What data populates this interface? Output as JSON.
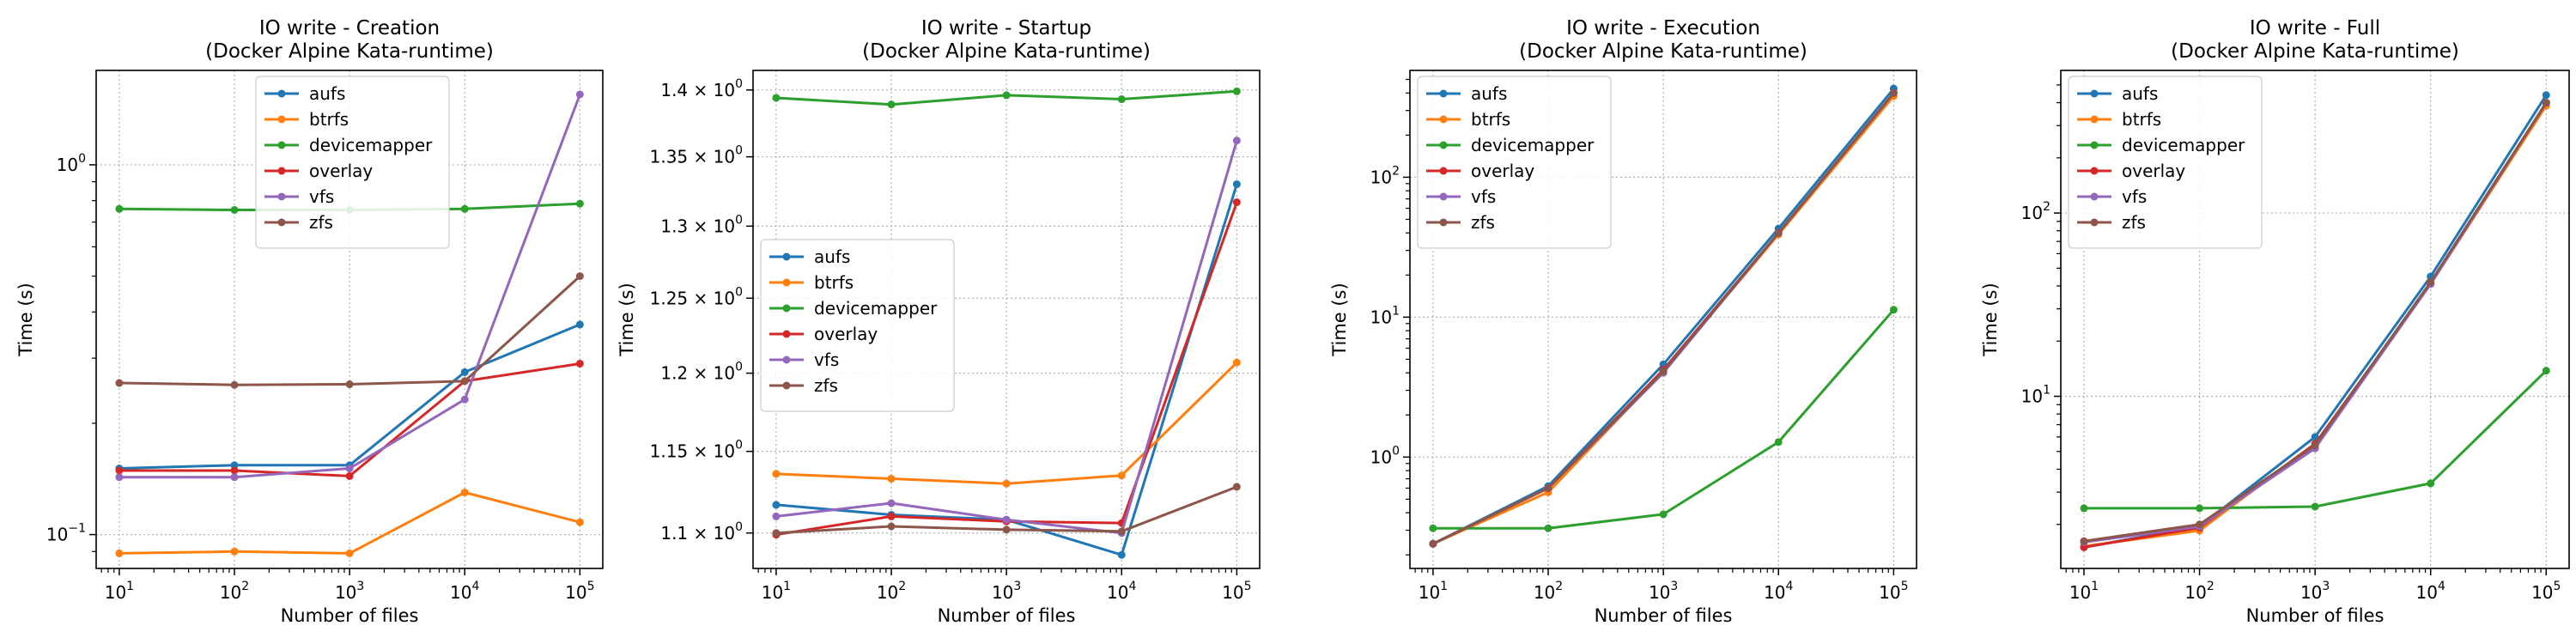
{
  "figure": {
    "xlabel": "Number of files",
    "ylabel": "Time (s)"
  },
  "colors": {
    "aufs": "#1f77b4",
    "btrfs": "#ff7f0e",
    "devicemapper": "#2ca02c",
    "overlay": "#d62728",
    "vfs": "#9467bd",
    "zfs": "#8c564b"
  },
  "chart_data": [
    {
      "type": "line",
      "title": "IO write - Creation",
      "subtitle": "(Docker Alpine Kata-runtime)",
      "xlabel": "Number of files",
      "ylabel": "Time (s)",
      "xscale": "log",
      "yscale": "log",
      "x": [
        10,
        100,
        1000,
        10000,
        100000
      ],
      "xticks": [
        {
          "v": 10,
          "m": "10",
          "e": "1"
        },
        {
          "v": 100,
          "m": "10",
          "e": "2"
        },
        {
          "v": 1000,
          "m": "10",
          "e": "3"
        },
        {
          "v": 10000,
          "m": "10",
          "e": "4"
        },
        {
          "v": 100000,
          "m": "10",
          "e": "5"
        }
      ],
      "xlim": [
        6.3,
        158000
      ],
      "ylim": [
        0.081,
        1.8
      ],
      "yticks": [
        {
          "v": 0.1,
          "m": "10",
          "e": "−1"
        },
        {
          "v": 1.0,
          "m": "10",
          "e": "0"
        }
      ],
      "grid": true,
      "legend": "top-center",
      "series": [
        {
          "name": "aufs",
          "values": [
            0.151,
            0.154,
            0.154,
            0.275,
            0.37
          ]
        },
        {
          "name": "btrfs",
          "values": [
            0.089,
            0.09,
            0.089,
            0.13,
            0.108
          ]
        },
        {
          "name": "devicemapper",
          "values": [
            0.76,
            0.755,
            0.755,
            0.76,
            0.785
          ]
        },
        {
          "name": "overlay",
          "values": [
            0.149,
            0.149,
            0.144,
            0.26,
            0.29
          ]
        },
        {
          "name": "vfs",
          "values": [
            0.143,
            0.143,
            0.151,
            0.232,
            1.55
          ]
        },
        {
          "name": "zfs",
          "values": [
            0.257,
            0.254,
            0.255,
            0.26,
            0.5
          ]
        }
      ]
    },
    {
      "type": "line",
      "title": "IO write - Startup",
      "subtitle": "(Docker Alpine Kata-runtime)",
      "xlabel": "Number of files",
      "ylabel": "Time (s)",
      "xscale": "log",
      "yscale": "log",
      "x": [
        10,
        100,
        1000,
        10000,
        100000
      ],
      "xticks": [
        {
          "v": 10,
          "m": "10",
          "e": "1"
        },
        {
          "v": 100,
          "m": "10",
          "e": "2"
        },
        {
          "v": 1000,
          "m": "10",
          "e": "3"
        },
        {
          "v": 10000,
          "m": "10",
          "e": "4"
        },
        {
          "v": 100000,
          "m": "10",
          "e": "5"
        }
      ],
      "xlim": [
        6.3,
        158000
      ],
      "ylim": [
        1.079,
        1.415
      ],
      "yticks": [
        {
          "v": 1.1,
          "m": "1.1 × 10",
          "e": "0"
        },
        {
          "v": 1.15,
          "m": "1.15 × 10",
          "e": "0"
        },
        {
          "v": 1.2,
          "m": "1.2 × 10",
          "e": "0"
        },
        {
          "v": 1.25,
          "m": "1.25 × 10",
          "e": "0"
        },
        {
          "v": 1.3,
          "m": "1.3 × 10",
          "e": "0"
        },
        {
          "v": 1.35,
          "m": "1.35 × 10",
          "e": "0"
        },
        {
          "v": 1.4,
          "m": "1.4 × 10",
          "e": "0"
        }
      ],
      "grid": true,
      "legend": "center-left",
      "series": [
        {
          "name": "aufs",
          "values": [
            1.117,
            1.111,
            1.108,
            1.087,
            1.33
          ]
        },
        {
          "name": "btrfs",
          "values": [
            1.136,
            1.133,
            1.13,
            1.135,
            1.207
          ]
        },
        {
          "name": "devicemapper",
          "values": [
            1.394,
            1.389,
            1.396,
            1.393,
            1.399
          ]
        },
        {
          "name": "overlay",
          "values": [
            1.099,
            1.11,
            1.107,
            1.106,
            1.317
          ]
        },
        {
          "name": "vfs",
          "values": [
            1.11,
            1.118,
            1.108,
            1.1,
            1.362
          ]
        },
        {
          "name": "zfs",
          "values": [
            1.1,
            1.104,
            1.102,
            1.101,
            1.128
          ]
        }
      ]
    },
    {
      "type": "line",
      "title": "IO write - Execution",
      "subtitle": "(Docker Alpine Kata-runtime)",
      "xlabel": "Number of files",
      "ylabel": "Time (s)",
      "xscale": "log",
      "yscale": "log",
      "x": [
        10,
        100,
        1000,
        10000,
        100000
      ],
      "xticks": [
        {
          "v": 10,
          "m": "10",
          "e": "1"
        },
        {
          "v": 100,
          "m": "10",
          "e": "2"
        },
        {
          "v": 1000,
          "m": "10",
          "e": "3"
        },
        {
          "v": 10000,
          "m": "10",
          "e": "4"
        },
        {
          "v": 100000,
          "m": "10",
          "e": "5"
        }
      ],
      "xlim": [
        6.3,
        158000
      ],
      "ylim": [
        0.16,
        580
      ],
      "yticks": [
        {
          "v": 1,
          "m": "10",
          "e": "0"
        },
        {
          "v": 10,
          "m": "10",
          "e": "1"
        },
        {
          "v": 100,
          "m": "10",
          "e": "2"
        }
      ],
      "grid": true,
      "legend": "top-left",
      "series": [
        {
          "name": "aufs",
          "values": [
            0.24,
            0.62,
            4.6,
            43,
            430
          ]
        },
        {
          "name": "btrfs",
          "values": [
            0.24,
            0.56,
            4.1,
            39,
            380
          ]
        },
        {
          "name": "devicemapper",
          "values": [
            0.31,
            0.31,
            0.39,
            1.28,
            11.3
          ]
        },
        {
          "name": "overlay",
          "values": [
            0.24,
            0.6,
            4.2,
            40,
            400
          ]
        },
        {
          "name": "vfs",
          "values": [
            0.24,
            0.6,
            4.0,
            40,
            400
          ]
        },
        {
          "name": "zfs",
          "values": [
            0.24,
            0.6,
            4.1,
            40,
            400
          ]
        }
      ]
    },
    {
      "type": "line",
      "title": "IO write - Full",
      "subtitle": "(Docker Alpine Kata-runtime)",
      "xlabel": "Number of files",
      "ylabel": "Time (s)",
      "xscale": "log",
      "yscale": "log",
      "x": [
        10,
        100,
        1000,
        10000,
        100000
      ],
      "xticks": [
        {
          "v": 10,
          "m": "10",
          "e": "1"
        },
        {
          "v": 100,
          "m": "10",
          "e": "2"
        },
        {
          "v": 1000,
          "m": "10",
          "e": "3"
        },
        {
          "v": 10000,
          "m": "10",
          "e": "4"
        },
        {
          "v": 100000,
          "m": "10",
          "e": "5"
        }
      ],
      "xlim": [
        6.3,
        158000
      ],
      "ylim": [
        1.15,
        600
      ],
      "yticks": [
        {
          "v": 10,
          "m": "10",
          "e": "1"
        },
        {
          "v": 100,
          "m": "10",
          "e": "2"
        }
      ],
      "grid": true,
      "legend": "top-left",
      "series": [
        {
          "name": "aufs",
          "values": [
            1.5,
            1.95,
            6.0,
            45,
            440
          ]
        },
        {
          "name": "btrfs",
          "values": [
            1.52,
            1.85,
            5.5,
            41,
            385
          ]
        },
        {
          "name": "devicemapper",
          "values": [
            2.45,
            2.45,
            2.5,
            3.35,
            13.8
          ]
        },
        {
          "name": "overlay",
          "values": [
            1.5,
            1.92,
            5.5,
            41,
            400
          ]
        },
        {
          "name": "vfs",
          "values": [
            1.6,
            1.95,
            5.2,
            41,
            400
          ]
        },
        {
          "name": "zfs",
          "values": [
            1.62,
            2.0,
            5.4,
            42,
            400
          ]
        }
      ]
    }
  ]
}
